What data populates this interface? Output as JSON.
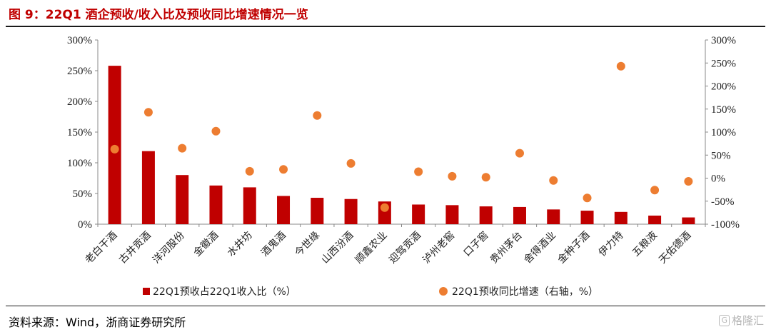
{
  "header": {
    "title": "图 9：22Q1 酒企预收/收入比及预收同比增速情况一览"
  },
  "footer": {
    "source": "资料来源：Wind，浙商证券研究所",
    "watermark_icon": "格隆汇-logo-icon",
    "watermark": "格隆汇"
  },
  "colors": {
    "bar": "#c00000",
    "dot": "#ed7d31",
    "title": "#c00000"
  },
  "chart_data": {
    "type": "bar",
    "title": "",
    "xlabel": "",
    "ylabel": "",
    "categories": [
      "老白干酒",
      "古井贡酒",
      "洋河股份",
      "金徽酒",
      "水井坊",
      "酒鬼酒",
      "今世缘",
      "山西汾酒",
      "顺鑫农业",
      "迎驾贡酒",
      "泸州老窖",
      "口子窖",
      "贵州茅台",
      "舍得酒业",
      "金种子酒",
      "伊力特",
      "五粮液",
      "天佑德酒"
    ],
    "series": [
      {
        "name": "22Q1预收占22Q1收入比（%）",
        "type": "bar",
        "axis": "left",
        "values": [
          258,
          119,
          80,
          63,
          60,
          46,
          43,
          41,
          37,
          32,
          31,
          29,
          28,
          24,
          22,
          20,
          14,
          11
        ]
      },
      {
        "name": "22Q1预收同比增速（右轴，%）",
        "type": "scatter",
        "axis": "right",
        "values": [
          63,
          143,
          65,
          102,
          15,
          19,
          136,
          32,
          -64,
          14,
          4,
          2,
          54,
          -5,
          -43,
          243,
          -26,
          -7
        ]
      }
    ],
    "left_axis": {
      "ylim": [
        0,
        300
      ],
      "ticks": [
        "0%",
        "50%",
        "100%",
        "150%",
        "200%",
        "250%",
        "300%"
      ]
    },
    "right_axis": {
      "ylim": [
        -100,
        300
      ],
      "ticks": [
        "-100%",
        "-50%",
        "0%",
        "50%",
        "100%",
        "150%",
        "200%",
        "250%",
        "300%"
      ]
    },
    "legend": "bottom",
    "grid": false
  }
}
